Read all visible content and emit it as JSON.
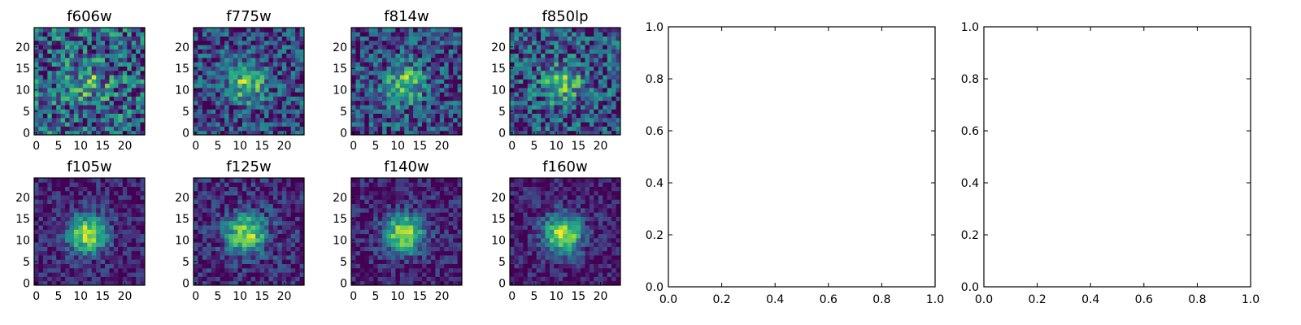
{
  "chart_data": [
    {
      "type": "heatmap",
      "title": "f606w",
      "colormap": "viridis",
      "grid_size": 25,
      "source_peak": 0.35,
      "noise": 0.65,
      "xticks": [
        "0",
        "5",
        "10",
        "15",
        "20"
      ],
      "yticks": [
        "0",
        "5",
        "10",
        "15",
        "20"
      ],
      "xlim": [
        -0.5,
        24.5
      ],
      "ylim": [
        -0.5,
        24.5
      ]
    },
    {
      "type": "heatmap",
      "title": "f775w",
      "colormap": "viridis",
      "grid_size": 25,
      "source_peak": 0.5,
      "noise": 0.5,
      "xticks": [
        "0",
        "5",
        "10",
        "15",
        "20"
      ],
      "yticks": [
        "0",
        "5",
        "10",
        "15",
        "20"
      ],
      "xlim": [
        -0.5,
        24.5
      ],
      "ylim": [
        -0.5,
        24.5
      ]
    },
    {
      "type": "heatmap",
      "title": "f814w",
      "colormap": "viridis",
      "grid_size": 25,
      "source_peak": 0.5,
      "noise": 0.5,
      "xticks": [
        "0",
        "5",
        "10",
        "15",
        "20"
      ],
      "yticks": [
        "0",
        "5",
        "10",
        "15",
        "20"
      ],
      "xlim": [
        -0.5,
        24.5
      ],
      "ylim": [
        -0.5,
        24.5
      ]
    },
    {
      "type": "heatmap",
      "title": "f850lp",
      "colormap": "viridis",
      "grid_size": 25,
      "source_peak": 0.45,
      "noise": 0.55,
      "xticks": [
        "0",
        "5",
        "10",
        "15",
        "20"
      ],
      "yticks": [
        "0",
        "5",
        "10",
        "15",
        "20"
      ],
      "xlim": [
        -0.5,
        24.5
      ],
      "ylim": [
        -0.5,
        24.5
      ]
    },
    {
      "type": "heatmap",
      "title": "f105w",
      "colormap": "viridis",
      "grid_size": 25,
      "source_peak": 0.8,
      "noise": 0.3,
      "xticks": [
        "0",
        "5",
        "10",
        "15",
        "20"
      ],
      "yticks": [
        "0",
        "5",
        "10",
        "15",
        "20"
      ],
      "xlim": [
        -0.5,
        24.5
      ],
      "ylim": [
        -0.5,
        24.5
      ]
    },
    {
      "type": "heatmap",
      "title": "f125w",
      "colormap": "viridis",
      "grid_size": 25,
      "source_peak": 0.75,
      "noise": 0.35,
      "xticks": [
        "0",
        "5",
        "10",
        "15",
        "20"
      ],
      "yticks": [
        "0",
        "5",
        "10",
        "15",
        "20"
      ],
      "xlim": [
        -0.5,
        24.5
      ],
      "ylim": [
        -0.5,
        24.5
      ]
    },
    {
      "type": "heatmap",
      "title": "f140w",
      "colormap": "viridis",
      "grid_size": 25,
      "source_peak": 0.8,
      "noise": 0.3,
      "xticks": [
        "0",
        "5",
        "10",
        "15",
        "20"
      ],
      "yticks": [
        "0",
        "5",
        "10",
        "15",
        "20"
      ],
      "xlim": [
        -0.5,
        24.5
      ],
      "ylim": [
        -0.5,
        24.5
      ]
    },
    {
      "type": "heatmap",
      "title": "f160w",
      "colormap": "viridis",
      "grid_size": 25,
      "source_peak": 0.85,
      "noise": 0.3,
      "xticks": [
        "0",
        "5",
        "10",
        "15",
        "20"
      ],
      "yticks": [
        "0",
        "5",
        "10",
        "15",
        "20"
      ],
      "xlim": [
        -0.5,
        24.5
      ],
      "ylim": [
        -0.5,
        24.5
      ]
    },
    {
      "type": "scatter",
      "title": "",
      "empty": true,
      "xlim": [
        0,
        1
      ],
      "ylim": [
        0,
        1
      ],
      "xticks": [
        "0.0",
        "0.2",
        "0.4",
        "0.6",
        "0.8",
        "1.0"
      ],
      "yticks": [
        "0.0",
        "0.2",
        "0.4",
        "0.6",
        "0.8",
        "1.0"
      ]
    },
    {
      "type": "scatter",
      "title": "",
      "empty": true,
      "xlim": [
        0,
        1
      ],
      "ylim": [
        0,
        1
      ],
      "xticks": [
        "0.0",
        "0.2",
        "0.4",
        "0.6",
        "0.8",
        "1.0"
      ],
      "yticks": [
        "0.0",
        "0.2",
        "0.4",
        "0.6",
        "0.8",
        "1.0"
      ]
    }
  ]
}
